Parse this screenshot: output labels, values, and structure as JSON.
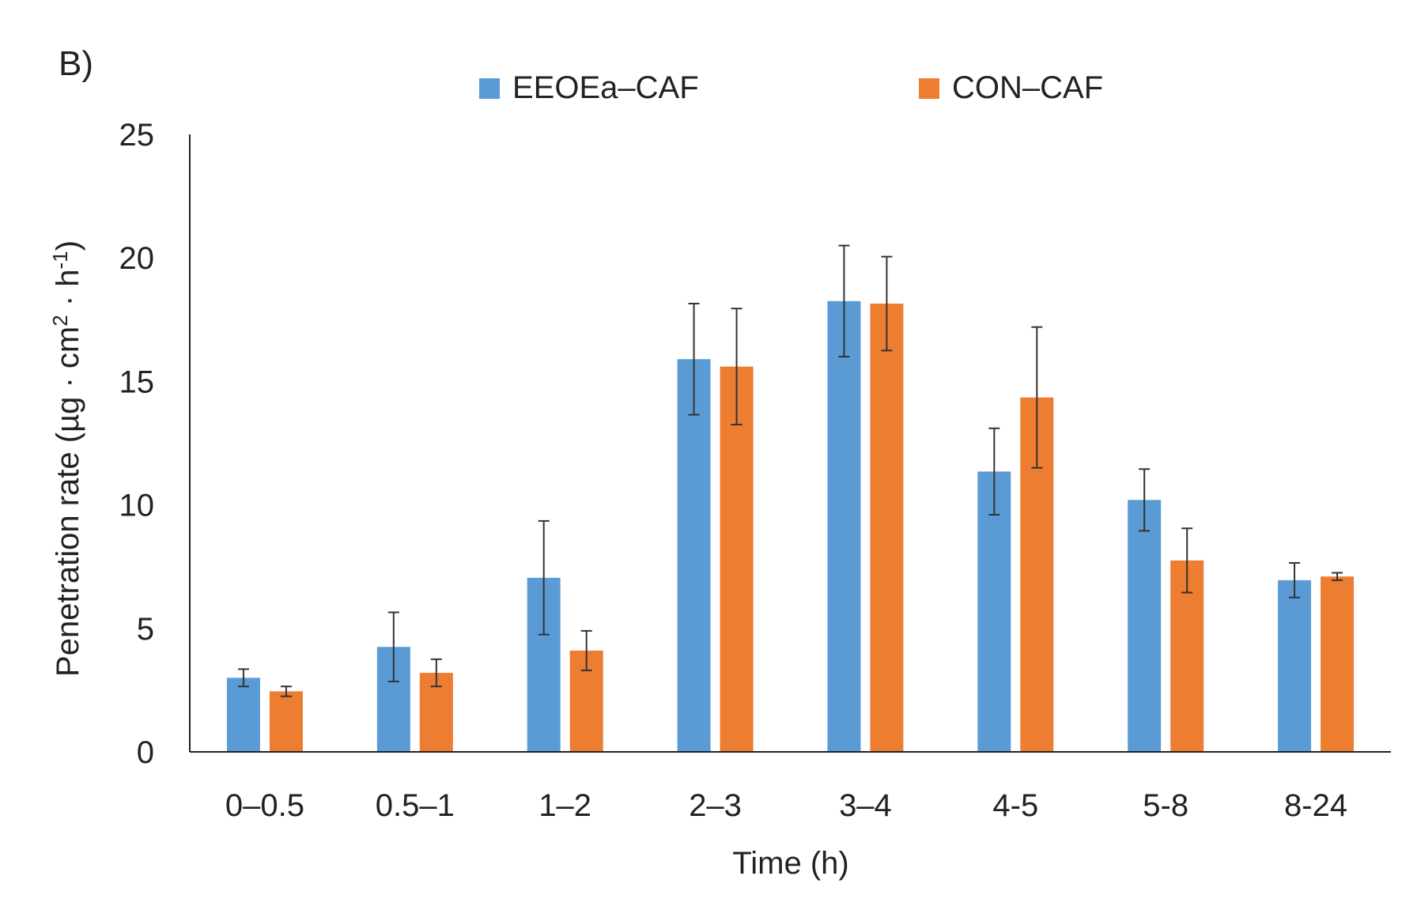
{
  "panel_label": "B)",
  "colors": {
    "EEOEa-CAF": "#5b9bd5",
    "CON-CAF": "#ed7d31"
  },
  "chart_data": {
    "type": "bar",
    "title": "",
    "xlabel": "Time (h)",
    "ylabel_main": "Penetration rate (µg · cm",
    "ylabel_sup1": "2",
    "ylabel_mid": " · h",
    "ylabel_sup2": "-1",
    "ylabel_end": ")",
    "ylim": [
      0,
      25
    ],
    "yticks": [
      "0",
      "5",
      "10",
      "15",
      "20",
      "25"
    ],
    "grid": false,
    "legend_position": "top",
    "categories": [
      "0–0.5",
      "0.5–1",
      "1–2",
      "2–3",
      "3–4",
      "4-5",
      "5-8",
      "8-24"
    ],
    "series": [
      {
        "name": "EEOEa–CAF",
        "color": "#5b9bd5",
        "values": [
          3.0,
          4.25,
          7.05,
          15.9,
          18.25,
          11.35,
          10.2,
          6.95
        ],
        "errors": [
          0.35,
          1.4,
          2.3,
          2.25,
          2.25,
          1.75,
          1.25,
          0.7
        ]
      },
      {
        "name": "CON–CAF",
        "color": "#ed7d31",
        "values": [
          2.45,
          3.2,
          4.1,
          15.6,
          18.15,
          14.35,
          7.75,
          7.1
        ],
        "errors": [
          0.2,
          0.55,
          0.8,
          2.35,
          1.9,
          2.85,
          1.3,
          0.15
        ]
      }
    ]
  }
}
